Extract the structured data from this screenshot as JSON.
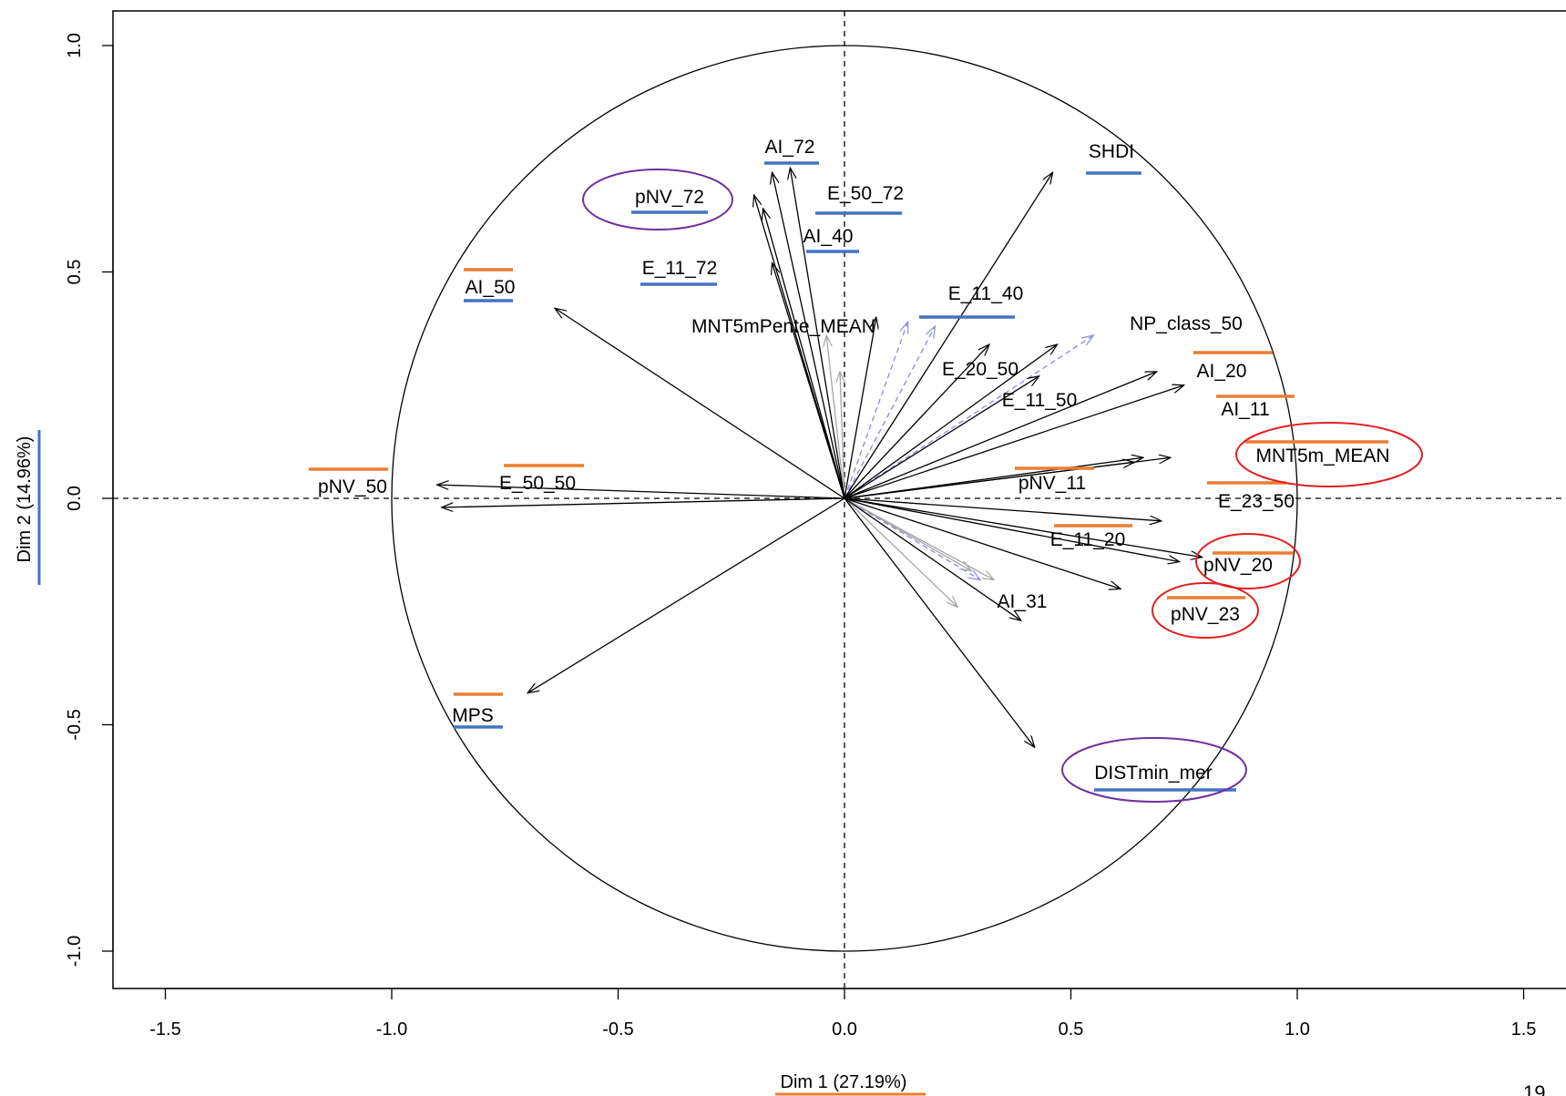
{
  "page_number": "19",
  "colors": {
    "active_arrow": "#000000",
    "supplementary_solid_arrow": "#a6a6a6",
    "supplementary_dashed_arrow": "#8a8ae0",
    "underline_orange": "#ed7d31",
    "underline_blue": "#4472c4",
    "circle_red": "#e02020",
    "circle_purple": "#7030a0"
  },
  "chart_data": {
    "type": "scatter",
    "subtype": "pca-correlation-circle",
    "title": "",
    "xlabel": "Dim 1 (27.19%)",
    "ylabel": "Dim 2 (14.96%)",
    "xlim": [
      -1.6,
      1.6
    ],
    "ylim": [
      -1.08,
      1.08
    ],
    "xticks": [
      "-1.5",
      "-1.0",
      "-0.5",
      "0.0",
      "0.5",
      "1.0",
      "1.5"
    ],
    "yticks": [
      "-1.0",
      "-0.5",
      "0.0",
      "0.5",
      "1.0"
    ],
    "unit_circle_radius": 1.0,
    "grid": false,
    "reference_lines": "dashed at x=0 and y=0",
    "variables": [
      {
        "label": "AI_72",
        "x": -0.16,
        "y": 0.72
      },
      {
        "label": "E_50_72",
        "x": -0.12,
        "y": 0.73
      },
      {
        "label": "pNV_72",
        "x": -0.2,
        "y": 0.67
      },
      {
        "label": "AI_40",
        "x": -0.18,
        "y": 0.64
      },
      {
        "label": "MNT5mPente_MEAN",
        "x": -0.16,
        "y": 0.52
      },
      {
        "label": "E_11_72",
        "x": 0.07,
        "y": 0.4
      },
      {
        "label": "SHDI",
        "x": 0.46,
        "y": 0.72
      },
      {
        "label": "E_11_40",
        "x": 0.32,
        "y": 0.34
      },
      {
        "label": "E_20_50",
        "x": 0.47,
        "y": 0.34
      },
      {
        "label": "NP_class_50",
        "x": 0.43,
        "y": 0.27
      },
      {
        "label": "E_11_50",
        "x": 0.69,
        "y": 0.28
      },
      {
        "label": "AI_20",
        "x": 0.75,
        "y": 0.25
      },
      {
        "label": "AI_11",
        "x": 0.64,
        "y": 0.08
      },
      {
        "label": "MNT5m_MEAN",
        "x": 0.72,
        "y": 0.09
      },
      {
        "label": "pNV_11",
        "x": 0.66,
        "y": 0.09
      },
      {
        "label": "E_23_50",
        "x": 0.7,
        "y": -0.05
      },
      {
        "label": "E_11_20",
        "x": 0.74,
        "y": -0.14
      },
      {
        "label": "pNV_20",
        "x": 0.79,
        "y": -0.13
      },
      {
        "label": "pNV_23",
        "x": 0.61,
        "y": -0.2
      },
      {
        "label": "AI_31",
        "x": 0.39,
        "y": -0.27
      },
      {
        "label": "DISTmin_mer",
        "x": 0.42,
        "y": -0.55
      },
      {
        "label": "AI_50",
        "x": -0.64,
        "y": 0.42
      },
      {
        "label": "pNV_50",
        "x": -0.9,
        "y": 0.03
      },
      {
        "label": "E_50_50",
        "x": -0.89,
        "y": -0.02
      },
      {
        "label": "MPS",
        "x": -0.7,
        "y": -0.43
      }
    ],
    "supplementary_arrows": [
      {
        "x": -0.04,
        "y": 0.36,
        "style": "solid"
      },
      {
        "x": -0.01,
        "y": 0.28,
        "style": "solid"
      },
      {
        "x": 0.14,
        "y": 0.39,
        "style": "dashed"
      },
      {
        "x": 0.2,
        "y": 0.38,
        "style": "dashed"
      },
      {
        "x": 0.55,
        "y": 0.36,
        "style": "dashed"
      },
      {
        "x": 0.28,
        "y": -0.16,
        "style": "solid"
      },
      {
        "x": 0.3,
        "y": -0.18,
        "style": "dashed"
      },
      {
        "x": 0.33,
        "y": -0.18,
        "style": "solid"
      },
      {
        "x": 0.25,
        "y": -0.24,
        "style": "solid"
      }
    ],
    "label_markers": [
      {
        "label": "AI_72",
        "underline": "blue"
      },
      {
        "label": "pNV_72",
        "underline": "blue",
        "circle": "purple"
      },
      {
        "label": "E_50_72",
        "underline": "blue"
      },
      {
        "label": "AI_40",
        "underline": "blue"
      },
      {
        "label": "E_11_72",
        "underline": "blue"
      },
      {
        "label": "AI_50",
        "underline": "both"
      },
      {
        "label": "SHDI",
        "underline": "blue"
      },
      {
        "label": "E_11_40",
        "underline": "blue"
      },
      {
        "label": "AI_20",
        "underline": "orange"
      },
      {
        "label": "AI_11",
        "underline": "orange"
      },
      {
        "label": "MNT5m_MEAN",
        "underline": "orange",
        "circle": "red"
      },
      {
        "label": "pNV_11",
        "underline": "orange"
      },
      {
        "label": "E_23_50",
        "underline": "orange"
      },
      {
        "label": "E_11_20",
        "underline": "orange"
      },
      {
        "label": "pNV_20",
        "underline": "orange",
        "circle": "red"
      },
      {
        "label": "pNV_23",
        "underline": "orange",
        "circle": "red"
      },
      {
        "label": "pNV_50",
        "underline": "orange"
      },
      {
        "label": "E_50_50",
        "underline": "orange"
      },
      {
        "label": "MPS",
        "underline": "both"
      },
      {
        "label": "DISTmin_mer",
        "underline": "blue",
        "circle": "purple"
      },
      {
        "label": "Dim 1 (27.19%)",
        "underline": "orange"
      },
      {
        "label": "Dim 2 (14.96%)",
        "underline": "blue"
      }
    ]
  }
}
